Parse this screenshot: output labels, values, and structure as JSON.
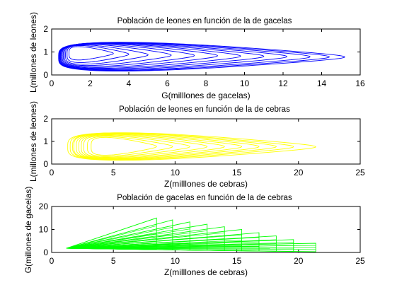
{
  "chart_data": [
    {
      "type": "line",
      "title": "Población de leones en función de la de gacelas",
      "xlabel": "G(milllones de gacelas)",
      "ylabel": "L(millones de leones)",
      "xlim": [
        0,
        16
      ],
      "ylim": [
        0,
        2
      ],
      "xticks": [
        "0",
        "2",
        "4",
        "6",
        "8",
        "10",
        "12",
        "14",
        "16"
      ],
      "yticks": [
        "0",
        "1",
        "2"
      ],
      "color": "#0000ff",
      "grid": false,
      "series": [
        {
          "curves": [
            {
              "xmin": 0.9,
              "xmax": 3.2,
              "ymin": 0.62,
              "ymax": 1.25
            },
            {
              "xmin": 0.8,
              "xmax": 4.0,
              "ymin": 0.5,
              "ymax": 1.3
            },
            {
              "xmin": 0.72,
              "xmax": 5.0,
              "ymin": 0.42,
              "ymax": 1.33
            },
            {
              "xmin": 0.66,
              "xmax": 6.2,
              "ymin": 0.36,
              "ymax": 1.36
            },
            {
              "xmin": 0.6,
              "xmax": 7.4,
              "ymin": 0.31,
              "ymax": 1.38
            },
            {
              "xmin": 0.55,
              "xmax": 8.6,
              "ymin": 0.27,
              "ymax": 1.4
            },
            {
              "xmin": 0.51,
              "xmax": 9.8,
              "ymin": 0.23,
              "ymax": 1.41
            },
            {
              "xmin": 0.47,
              "xmax": 11.0,
              "ymin": 0.2,
              "ymax": 1.42
            },
            {
              "xmin": 0.44,
              "xmax": 12.2,
              "ymin": 0.17,
              "ymax": 1.43
            },
            {
              "xmin": 0.41,
              "xmax": 13.4,
              "ymin": 0.14,
              "ymax": 1.44
            },
            {
              "xmin": 0.38,
              "xmax": 14.4,
              "ymin": 0.12,
              "ymax": 1.45
            },
            {
              "xmin": 0.36,
              "xmax": 15.2,
              "ymin": 0.1,
              "ymax": 1.46
            }
          ]
        }
      ]
    },
    {
      "type": "line",
      "title": "Población de leones en función de la de cebras",
      "xlabel": "Z(milllones de cebras)",
      "ylabel": "L(millones de leones)",
      "xlim": [
        0,
        25
      ],
      "ylim": [
        0,
        2
      ],
      "xticks": [
        "0",
        "5",
        "10",
        "15",
        "20",
        "25"
      ],
      "yticks": [
        "0",
        "1",
        "2"
      ],
      "color": "#ffff00",
      "grid": false,
      "series": [
        {
          "curves": [
            {
              "xmin": 3.2,
              "xmax": 8.5,
              "ymin": 0.35,
              "ymax": 1.2
            },
            {
              "xmin": 2.9,
              "xmax": 9.8,
              "ymin": 0.3,
              "ymax": 1.24
            },
            {
              "xmin": 2.6,
              "xmax": 11.2,
              "ymin": 0.26,
              "ymax": 1.28
            },
            {
              "xmin": 2.4,
              "xmax": 12.6,
              "ymin": 0.23,
              "ymax": 1.31
            },
            {
              "xmin": 2.2,
              "xmax": 14.0,
              "ymin": 0.2,
              "ymax": 1.34
            },
            {
              "xmin": 2.0,
              "xmax": 15.4,
              "ymin": 0.18,
              "ymax": 1.36
            },
            {
              "xmin": 1.8,
              "xmax": 16.8,
              "ymin": 0.16,
              "ymax": 1.38
            },
            {
              "xmin": 1.7,
              "xmax": 18.2,
              "ymin": 0.14,
              "ymax": 1.4
            },
            {
              "xmin": 1.5,
              "xmax": 19.6,
              "ymin": 0.12,
              "ymax": 1.41
            },
            {
              "xmin": 1.3,
              "xmax": 21.4,
              "ymin": 0.1,
              "ymax": 1.42
            }
          ]
        }
      ]
    },
    {
      "type": "line",
      "title": "Población de gacelas en función de la de cebras",
      "xlabel": "Z(milllones de cebras)",
      "ylabel": "G(millones de gacelas)",
      "xlim": [
        0,
        25
      ],
      "ylim": [
        0,
        20
      ],
      "xticks": [
        "0",
        "5",
        "10",
        "15",
        "20",
        "25"
      ],
      "yticks": [
        "0",
        "10",
        "20"
      ],
      "color": "#00ff00",
      "grid": false,
      "series": [
        {
          "fan": {
            "origin": [
              1.2,
              1.8
            ],
            "tips": [
              [
                8.5,
                15.0
              ],
              [
                9.8,
                14.2
              ],
              [
                11.2,
                13.3
              ],
              [
                12.6,
                12.3
              ],
              [
                14.0,
                11.2
              ],
              [
                15.4,
                10.0
              ],
              [
                16.8,
                8.6
              ],
              [
                18.2,
                7.2
              ],
              [
                19.6,
                5.6
              ],
              [
                21.4,
                4.0
              ]
            ],
            "bottom": [
              [
                8.5,
                1.4
              ],
              [
                9.8,
                1.2
              ],
              [
                11.2,
                1.0
              ],
              [
                12.6,
                0.9
              ],
              [
                14.0,
                0.8
              ],
              [
                15.4,
                0.7
              ],
              [
                16.8,
                0.6
              ],
              [
                18.2,
                0.5
              ],
              [
                19.6,
                0.4
              ],
              [
                21.4,
                0.3
              ]
            ]
          }
        }
      ]
    }
  ]
}
